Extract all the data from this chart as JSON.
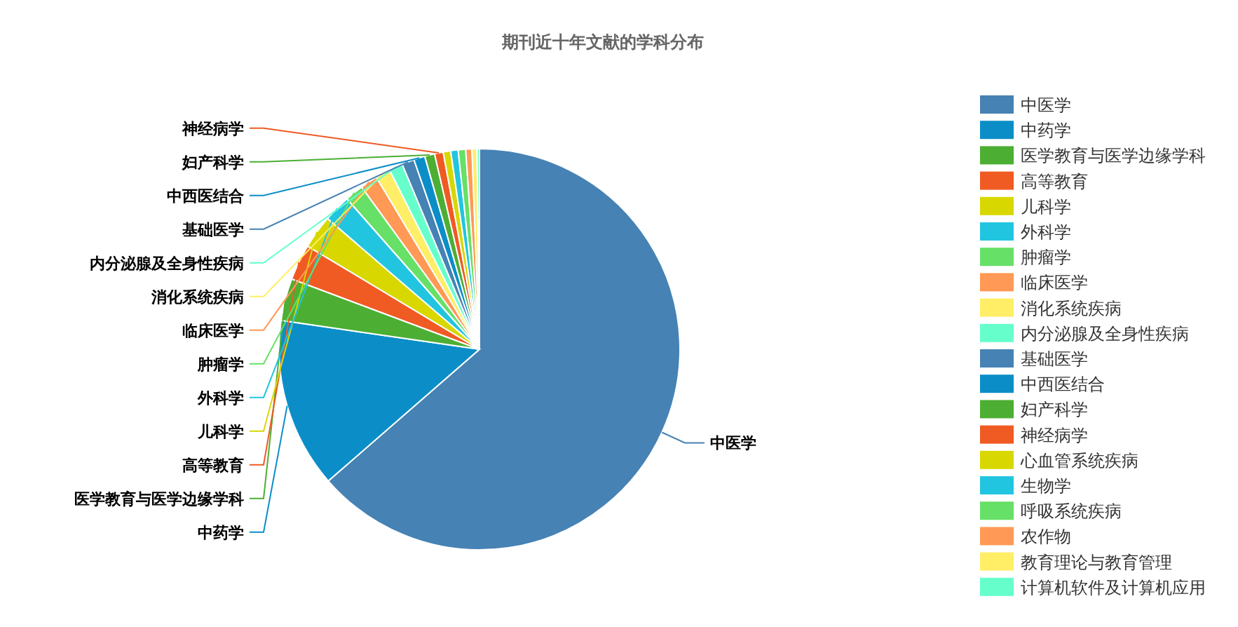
{
  "chart_data": {
    "type": "pie",
    "title": "期刊近十年文献的学科分布",
    "legend": "right",
    "categories": [
      "中医学",
      "中药学",
      "医学教育与医学边缘学科",
      "高等教育",
      "儿科学",
      "外科学",
      "肿瘤学",
      "临床医学",
      "消化系统疾病",
      "内分泌腺及全身性疾病",
      "基础医学",
      "中西医结合",
      "妇产科学",
      "神经病学",
      "心血管系统疾病",
      "生物学",
      "呼吸系统疾病",
      "农作物",
      "教育理论与教育管理",
      "计算机软件及计算机应用"
    ],
    "values": [
      63.6,
      13.7,
      3.4,
      2.9,
      2.7,
      2.2,
      1.5,
      1.4,
      1.2,
      1.1,
      1.0,
      0.9,
      0.8,
      0.7,
      0.6,
      0.6,
      0.6,
      0.5,
      0.4,
      0.2
    ],
    "colors": [
      "#4682b4",
      "#0b8ec8",
      "#4caf33",
      "#f05a23",
      "#d8d800",
      "#22c5e0",
      "#66e066",
      "#ff9955",
      "#ffee66",
      "#66ffcc",
      "#4682b4",
      "#0b8ec8",
      "#4caf33",
      "#f05a23",
      "#d8d800",
      "#22c5e0",
      "#66e066",
      "#ff9955",
      "#ffee66",
      "#66ffcc"
    ]
  }
}
